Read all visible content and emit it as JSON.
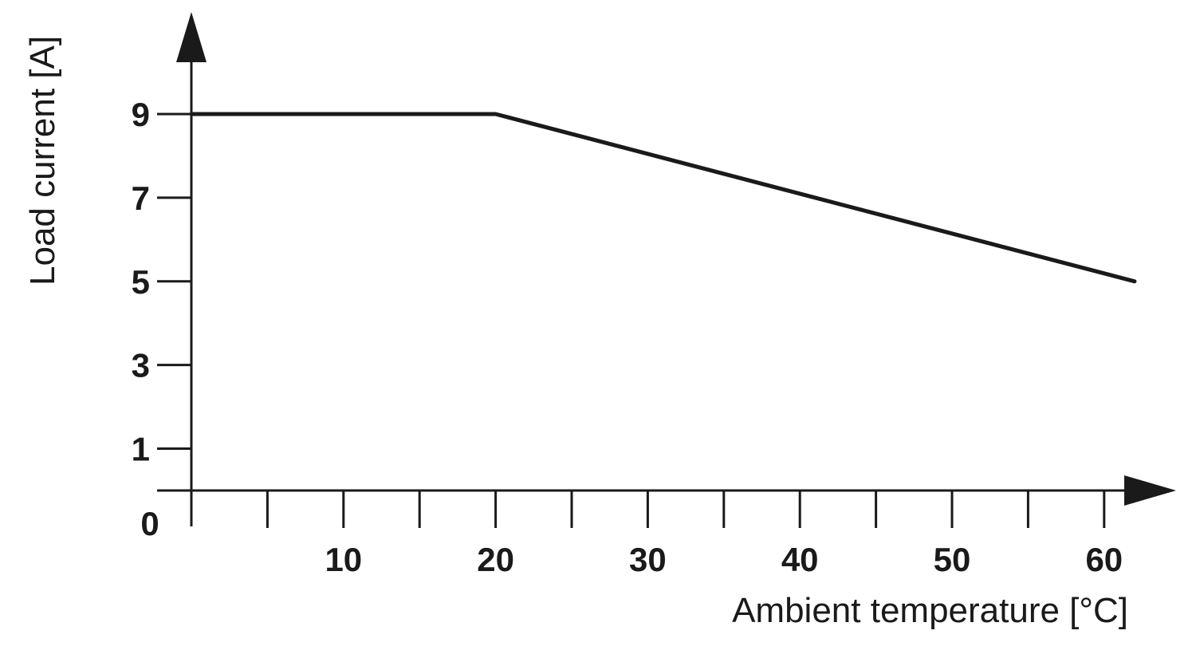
{
  "chart_data": {
    "type": "line",
    "title": "",
    "xlabel": "Ambient temperature [°C]",
    "ylabel": "Load current [A]",
    "xlim": [
      0,
      64
    ],
    "ylim": [
      0,
      10
    ],
    "x_ticks": [
      0,
      5,
      10,
      15,
      20,
      25,
      30,
      35,
      40,
      45,
      50,
      55,
      60
    ],
    "x_tick_labels": [
      {
        "value": 10,
        "label": "10"
      },
      {
        "value": 20,
        "label": "20"
      },
      {
        "value": 30,
        "label": "30"
      },
      {
        "value": 40,
        "label": "40"
      },
      {
        "value": 50,
        "label": "50"
      },
      {
        "value": 60,
        "label": "60"
      }
    ],
    "y_tick_labels": [
      {
        "value": 1,
        "label": "1"
      },
      {
        "value": 3,
        "label": "3"
      },
      {
        "value": 5,
        "label": "5"
      },
      {
        "value": 7,
        "label": "7"
      },
      {
        "value": 9,
        "label": "9"
      }
    ],
    "origin_label": "0",
    "grid": false,
    "legend": "none",
    "series": [
      {
        "x": [
          0,
          20,
          62
        ],
        "y": [
          9,
          9,
          5
        ],
        "color": "#1a1a1a"
      }
    ]
  }
}
